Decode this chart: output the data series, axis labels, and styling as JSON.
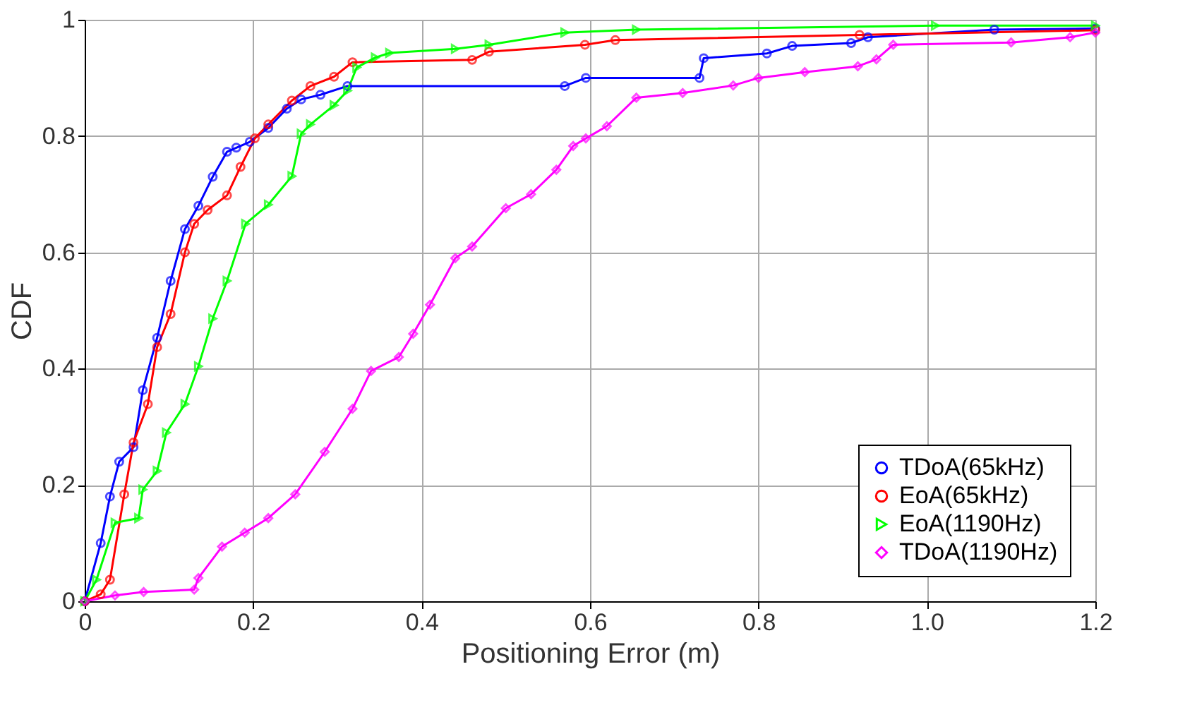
{
  "chart_data": {
    "type": "line",
    "xlabel": "Positioning Error (m)",
    "ylabel": "CDF",
    "xlim": [
      0,
      1.2
    ],
    "ylim": [
      0,
      1
    ],
    "xticks": [
      0,
      0.2,
      0.4,
      0.6,
      0.8,
      {
        "value": 1,
        "label": "1.0"
      },
      1.2
    ],
    "yticks": [
      0,
      0.2,
      0.4,
      0.6,
      0.8,
      1
    ],
    "grid": true,
    "legend": "bottom right",
    "line_style": "solid",
    "series": [
      {
        "name": "TDoA(65kHz)",
        "color": "#0000ff",
        "marker": "circle",
        "x": [
          0,
          0.019,
          0.03,
          0.041,
          0.058,
          0.069,
          0.086,
          0.102,
          0.119,
          0.135,
          0.152,
          0.169,
          0.18,
          0.196,
          0.218,
          0.24,
          0.257,
          0.28,
          0.312,
          0.57,
          0.595,
          0.73,
          0.735,
          0.81,
          0.84,
          0.91,
          0.93,
          1.08,
          1.2
        ],
        "values": [
          0,
          0.1,
          0.18,
          0.24,
          0.265,
          0.363,
          0.453,
          0.551,
          0.64,
          0.68,
          0.73,
          0.773,
          0.78,
          0.79,
          0.814,
          0.847,
          0.863,
          0.871,
          0.886,
          0.886,
          0.9,
          0.9,
          0.934,
          0.942,
          0.955,
          0.96,
          0.97,
          0.983,
          0.985
        ]
      },
      {
        "name": "EoA(65kHz)",
        "color": "#ff0000",
        "marker": "circle",
        "x": [
          0,
          0.019,
          0.03,
          0.047,
          0.058,
          0.075,
          0.086,
          0.102,
          0.119,
          0.13,
          0.146,
          0.169,
          0.185,
          0.202,
          0.218,
          0.246,
          0.268,
          0.296,
          0.318,
          0.46,
          0.48,
          0.594,
          0.63,
          0.92,
          1.2
        ],
        "values": [
          0,
          0.012,
          0.037,
          0.184,
          0.273,
          0.339,
          0.437,
          0.494,
          0.6,
          0.649,
          0.673,
          0.698,
          0.747,
          0.796,
          0.82,
          0.861,
          0.886,
          0.902,
          0.927,
          0.931,
          0.945,
          0.957,
          0.965,
          0.974,
          0.982
        ]
      },
      {
        "name": "EoA(1190Hz)",
        "color": "#00ff00",
        "marker": "triangle",
        "x": [
          0,
          0.014,
          0.036,
          0.064,
          0.069,
          0.086,
          0.097,
          0.119,
          0.135,
          0.152,
          0.169,
          0.191,
          0.218,
          0.246,
          0.257,
          0.268,
          0.296,
          0.312,
          0.323,
          0.345,
          0.362,
          0.44,
          0.48,
          0.57,
          0.655,
          1.01,
          1.2
        ],
        "values": [
          0,
          0.037,
          0.135,
          0.143,
          0.192,
          0.224,
          0.29,
          0.339,
          0.404,
          0.486,
          0.551,
          0.649,
          0.682,
          0.731,
          0.804,
          0.82,
          0.853,
          0.878,
          0.918,
          0.935,
          0.943,
          0.95,
          0.957,
          0.978,
          0.983,
          0.99,
          0.99
        ]
      },
      {
        "name": "TDoA(1190Hz)",
        "color": "#ff00ff",
        "marker": "diamond",
        "x": [
          0,
          0.036,
          0.07,
          0.13,
          0.135,
          0.163,
          0.19,
          0.218,
          0.25,
          0.285,
          0.318,
          0.34,
          0.373,
          0.39,
          0.41,
          0.44,
          0.46,
          0.5,
          0.53,
          0.56,
          0.58,
          0.595,
          0.62,
          0.655,
          0.71,
          0.77,
          0.8,
          0.855,
          0.918,
          0.94,
          0.96,
          1.1,
          1.17,
          1.2
        ],
        "values": [
          0,
          0.01,
          0.016,
          0.02,
          0.04,
          0.094,
          0.118,
          0.143,
          0.184,
          0.257,
          0.331,
          0.396,
          0.42,
          0.46,
          0.51,
          0.59,
          0.61,
          0.676,
          0.7,
          0.742,
          0.783,
          0.796,
          0.817,
          0.866,
          0.874,
          0.887,
          0.9,
          0.91,
          0.92,
          0.932,
          0.957,
          0.961,
          0.97,
          0.978
        ]
      }
    ]
  }
}
